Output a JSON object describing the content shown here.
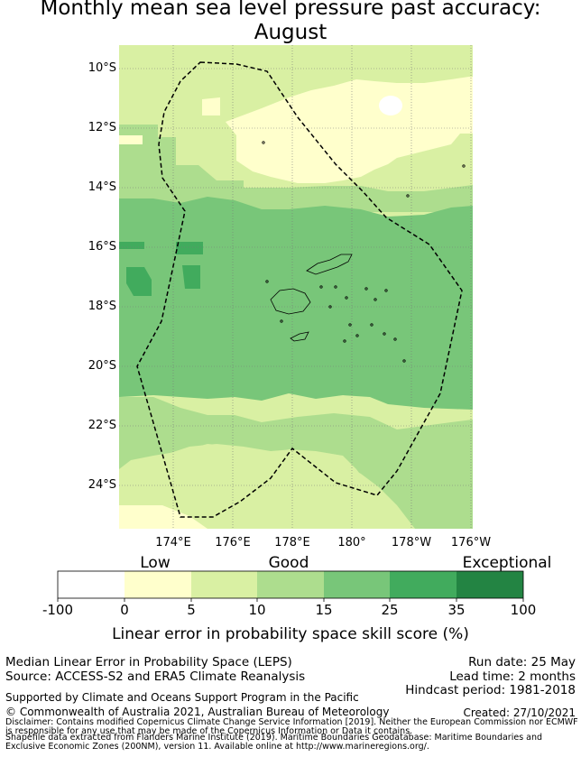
{
  "title": "Monthly mean sea level pressure past accuracy:\nAugust",
  "title_line1": "Monthly mean sea level pressure past accuracy:",
  "title_line2": "August",
  "map": {
    "lat_labels": [
      "10°S",
      "12°S",
      "14°S",
      "16°S",
      "18°S",
      "20°S",
      "22°S",
      "24°S"
    ],
    "lon_labels": [
      "174°E",
      "176°E",
      "178°E",
      "180°",
      "178°W",
      "176°W"
    ],
    "region_boundary": "Fiji EEZ (dashed)",
    "colors": {
      "lightyellow": "#ffffcc",
      "yellowgreen": "#d9f0a3",
      "lightgreen": "#addd8e",
      "green": "#78c679",
      "darkgreen": "#41ab5d",
      "deepgreen": "#238443",
      "white": "#ffffff",
      "grid": "#7a7a7a",
      "boundary": "#000000"
    }
  },
  "colorbar": {
    "category_labels": [
      "Low",
      "Good",
      "Exceptional"
    ],
    "ticks": [
      "-100",
      "0",
      "5",
      "10",
      "15",
      "25",
      "35",
      "100"
    ],
    "bins": [
      {
        "range": "-100 to 0",
        "color": "#ffffff"
      },
      {
        "range": "0 to 5",
        "color": "#ffffcc"
      },
      {
        "range": "5 to 10",
        "color": "#d9f0a3"
      },
      {
        "range": "10 to 15",
        "color": "#addd8e"
      },
      {
        "range": "15 to 25",
        "color": "#78c679"
      },
      {
        "range": "25 to 35",
        "color": "#41ab5d"
      },
      {
        "range": "35 to 100",
        "color": "#238443"
      }
    ],
    "label": "Linear error in probability space skill score (%)"
  },
  "info": {
    "left_line1": "Median Linear Error in Probability Space (LEPS)",
    "left_line2": "Source: ACCESS-S2 and ERA5 Climate Reanalysis",
    "run_date": "Run date: 25 May",
    "lead_time": "Lead time: 2 months",
    "hindcast": "Hindcast period: 1981-2018",
    "supported_by": "Supported by Climate and Oceans Support Program in the Pacific",
    "copyright": "© Commonwealth of Australia 2021, Australian Bureau of Meteorology",
    "created": "Created: 27/10/2021",
    "disclaimer": "Disclaimer: Contains modified Copernicus Climate Change Service Information [2019]. Neither the European Commission nor ECMWF is responsible for any use that may be made of the Copernicus Information or Data it contains.",
    "shapefile": "Shapefile data extracted from Flanders Marine Institute (2019). Maritime Boundaries Geodatabase: Maritime Boundaries and Exclusive Economic Zones (200NM), version 11. Available online at http://www.marineregions.org/."
  }
}
